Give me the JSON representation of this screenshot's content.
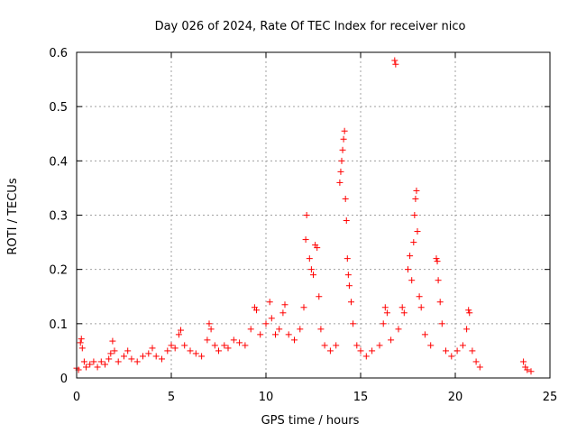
{
  "chart_data": {
    "type": "scatter",
    "title": "Day 026 of 2024, Rate Of TEC Index for receiver nico",
    "xlabel": "GPS time / hours",
    "ylabel": "ROTI / TECUs",
    "xlim": [
      0,
      25
    ],
    "ylim": [
      0,
      0.6
    ],
    "xticks": [
      "0",
      "5",
      "10",
      "15",
      "20",
      "25"
    ],
    "yticks": [
      "0",
      "0.1",
      "0.2",
      "0.3",
      "0.4",
      "0.5",
      "0.6"
    ],
    "grid": true,
    "marker": "+",
    "color": "#ff0000",
    "series": [
      {
        "points": [
          [
            0.0,
            0.018
          ],
          [
            0.1,
            0.015
          ],
          [
            0.2,
            0.065
          ],
          [
            0.25,
            0.072
          ],
          [
            0.3,
            0.055
          ],
          [
            0.4,
            0.03
          ],
          [
            0.5,
            0.02
          ],
          [
            0.7,
            0.025
          ],
          [
            0.9,
            0.03
          ],
          [
            1.1,
            0.02
          ],
          [
            1.3,
            0.03
          ],
          [
            1.5,
            0.025
          ],
          [
            1.7,
            0.035
          ],
          [
            1.8,
            0.045
          ],
          [
            1.9,
            0.068
          ],
          [
            2.0,
            0.05
          ],
          [
            2.2,
            0.03
          ],
          [
            2.5,
            0.04
          ],
          [
            2.7,
            0.05
          ],
          [
            2.9,
            0.035
          ],
          [
            3.2,
            0.03
          ],
          [
            3.5,
            0.04
          ],
          [
            3.8,
            0.045
          ],
          [
            4.0,
            0.055
          ],
          [
            4.2,
            0.04
          ],
          [
            4.5,
            0.035
          ],
          [
            4.8,
            0.05
          ],
          [
            5.0,
            0.06
          ],
          [
            5.2,
            0.055
          ],
          [
            5.4,
            0.08
          ],
          [
            5.5,
            0.088
          ],
          [
            5.7,
            0.06
          ],
          [
            6.0,
            0.05
          ],
          [
            6.3,
            0.045
          ],
          [
            6.6,
            0.04
          ],
          [
            6.9,
            0.07
          ],
          [
            7.0,
            0.1
          ],
          [
            7.1,
            0.09
          ],
          [
            7.3,
            0.06
          ],
          [
            7.5,
            0.05
          ],
          [
            7.8,
            0.06
          ],
          [
            8.0,
            0.055
          ],
          [
            8.3,
            0.07
          ],
          [
            8.6,
            0.065
          ],
          [
            8.9,
            0.06
          ],
          [
            9.2,
            0.09
          ],
          [
            9.4,
            0.13
          ],
          [
            9.5,
            0.125
          ],
          [
            9.7,
            0.08
          ],
          [
            10.0,
            0.1
          ],
          [
            10.2,
            0.14
          ],
          [
            10.3,
            0.11
          ],
          [
            10.5,
            0.08
          ],
          [
            10.7,
            0.09
          ],
          [
            10.9,
            0.12
          ],
          [
            11.0,
            0.135
          ],
          [
            11.2,
            0.08
          ],
          [
            11.5,
            0.07
          ],
          [
            11.8,
            0.09
          ],
          [
            12.0,
            0.13
          ],
          [
            12.1,
            0.255
          ],
          [
            12.15,
            0.3
          ],
          [
            12.3,
            0.22
          ],
          [
            12.4,
            0.2
          ],
          [
            12.5,
            0.19
          ],
          [
            12.6,
            0.245
          ],
          [
            12.7,
            0.24
          ],
          [
            12.8,
            0.15
          ],
          [
            12.9,
            0.09
          ],
          [
            13.1,
            0.06
          ],
          [
            13.4,
            0.05
          ],
          [
            13.7,
            0.06
          ],
          [
            13.9,
            0.36
          ],
          [
            13.95,
            0.38
          ],
          [
            14.0,
            0.4
          ],
          [
            14.05,
            0.42
          ],
          [
            14.1,
            0.44
          ],
          [
            14.15,
            0.455
          ],
          [
            14.2,
            0.33
          ],
          [
            14.25,
            0.29
          ],
          [
            14.3,
            0.22
          ],
          [
            14.35,
            0.19
          ],
          [
            14.4,
            0.17
          ],
          [
            14.5,
            0.14
          ],
          [
            14.6,
            0.1
          ],
          [
            14.8,
            0.06
          ],
          [
            15.0,
            0.05
          ],
          [
            15.3,
            0.04
          ],
          [
            15.6,
            0.05
          ],
          [
            16.0,
            0.06
          ],
          [
            16.2,
            0.1
          ],
          [
            16.3,
            0.13
          ],
          [
            16.4,
            0.12
          ],
          [
            16.6,
            0.07
          ],
          [
            16.8,
            0.585
          ],
          [
            16.85,
            0.578
          ],
          [
            17.0,
            0.09
          ],
          [
            17.2,
            0.13
          ],
          [
            17.3,
            0.12
          ],
          [
            17.5,
            0.2
          ],
          [
            17.6,
            0.225
          ],
          [
            17.7,
            0.18
          ],
          [
            17.8,
            0.25
          ],
          [
            17.85,
            0.3
          ],
          [
            17.9,
            0.33
          ],
          [
            17.95,
            0.345
          ],
          [
            18.0,
            0.27
          ],
          [
            18.1,
            0.15
          ],
          [
            18.2,
            0.13
          ],
          [
            18.4,
            0.08
          ],
          [
            18.7,
            0.06
          ],
          [
            19.0,
            0.22
          ],
          [
            19.05,
            0.215
          ],
          [
            19.1,
            0.18
          ],
          [
            19.2,
            0.14
          ],
          [
            19.3,
            0.1
          ],
          [
            19.5,
            0.05
          ],
          [
            19.8,
            0.04
          ],
          [
            20.1,
            0.05
          ],
          [
            20.4,
            0.06
          ],
          [
            20.6,
            0.09
          ],
          [
            20.7,
            0.125
          ],
          [
            20.75,
            0.12
          ],
          [
            20.9,
            0.05
          ],
          [
            21.1,
            0.03
          ],
          [
            21.3,
            0.02
          ],
          [
            23.6,
            0.03
          ],
          [
            23.7,
            0.02
          ],
          [
            23.8,
            0.015
          ],
          [
            24.0,
            0.012
          ]
        ]
      }
    ]
  }
}
